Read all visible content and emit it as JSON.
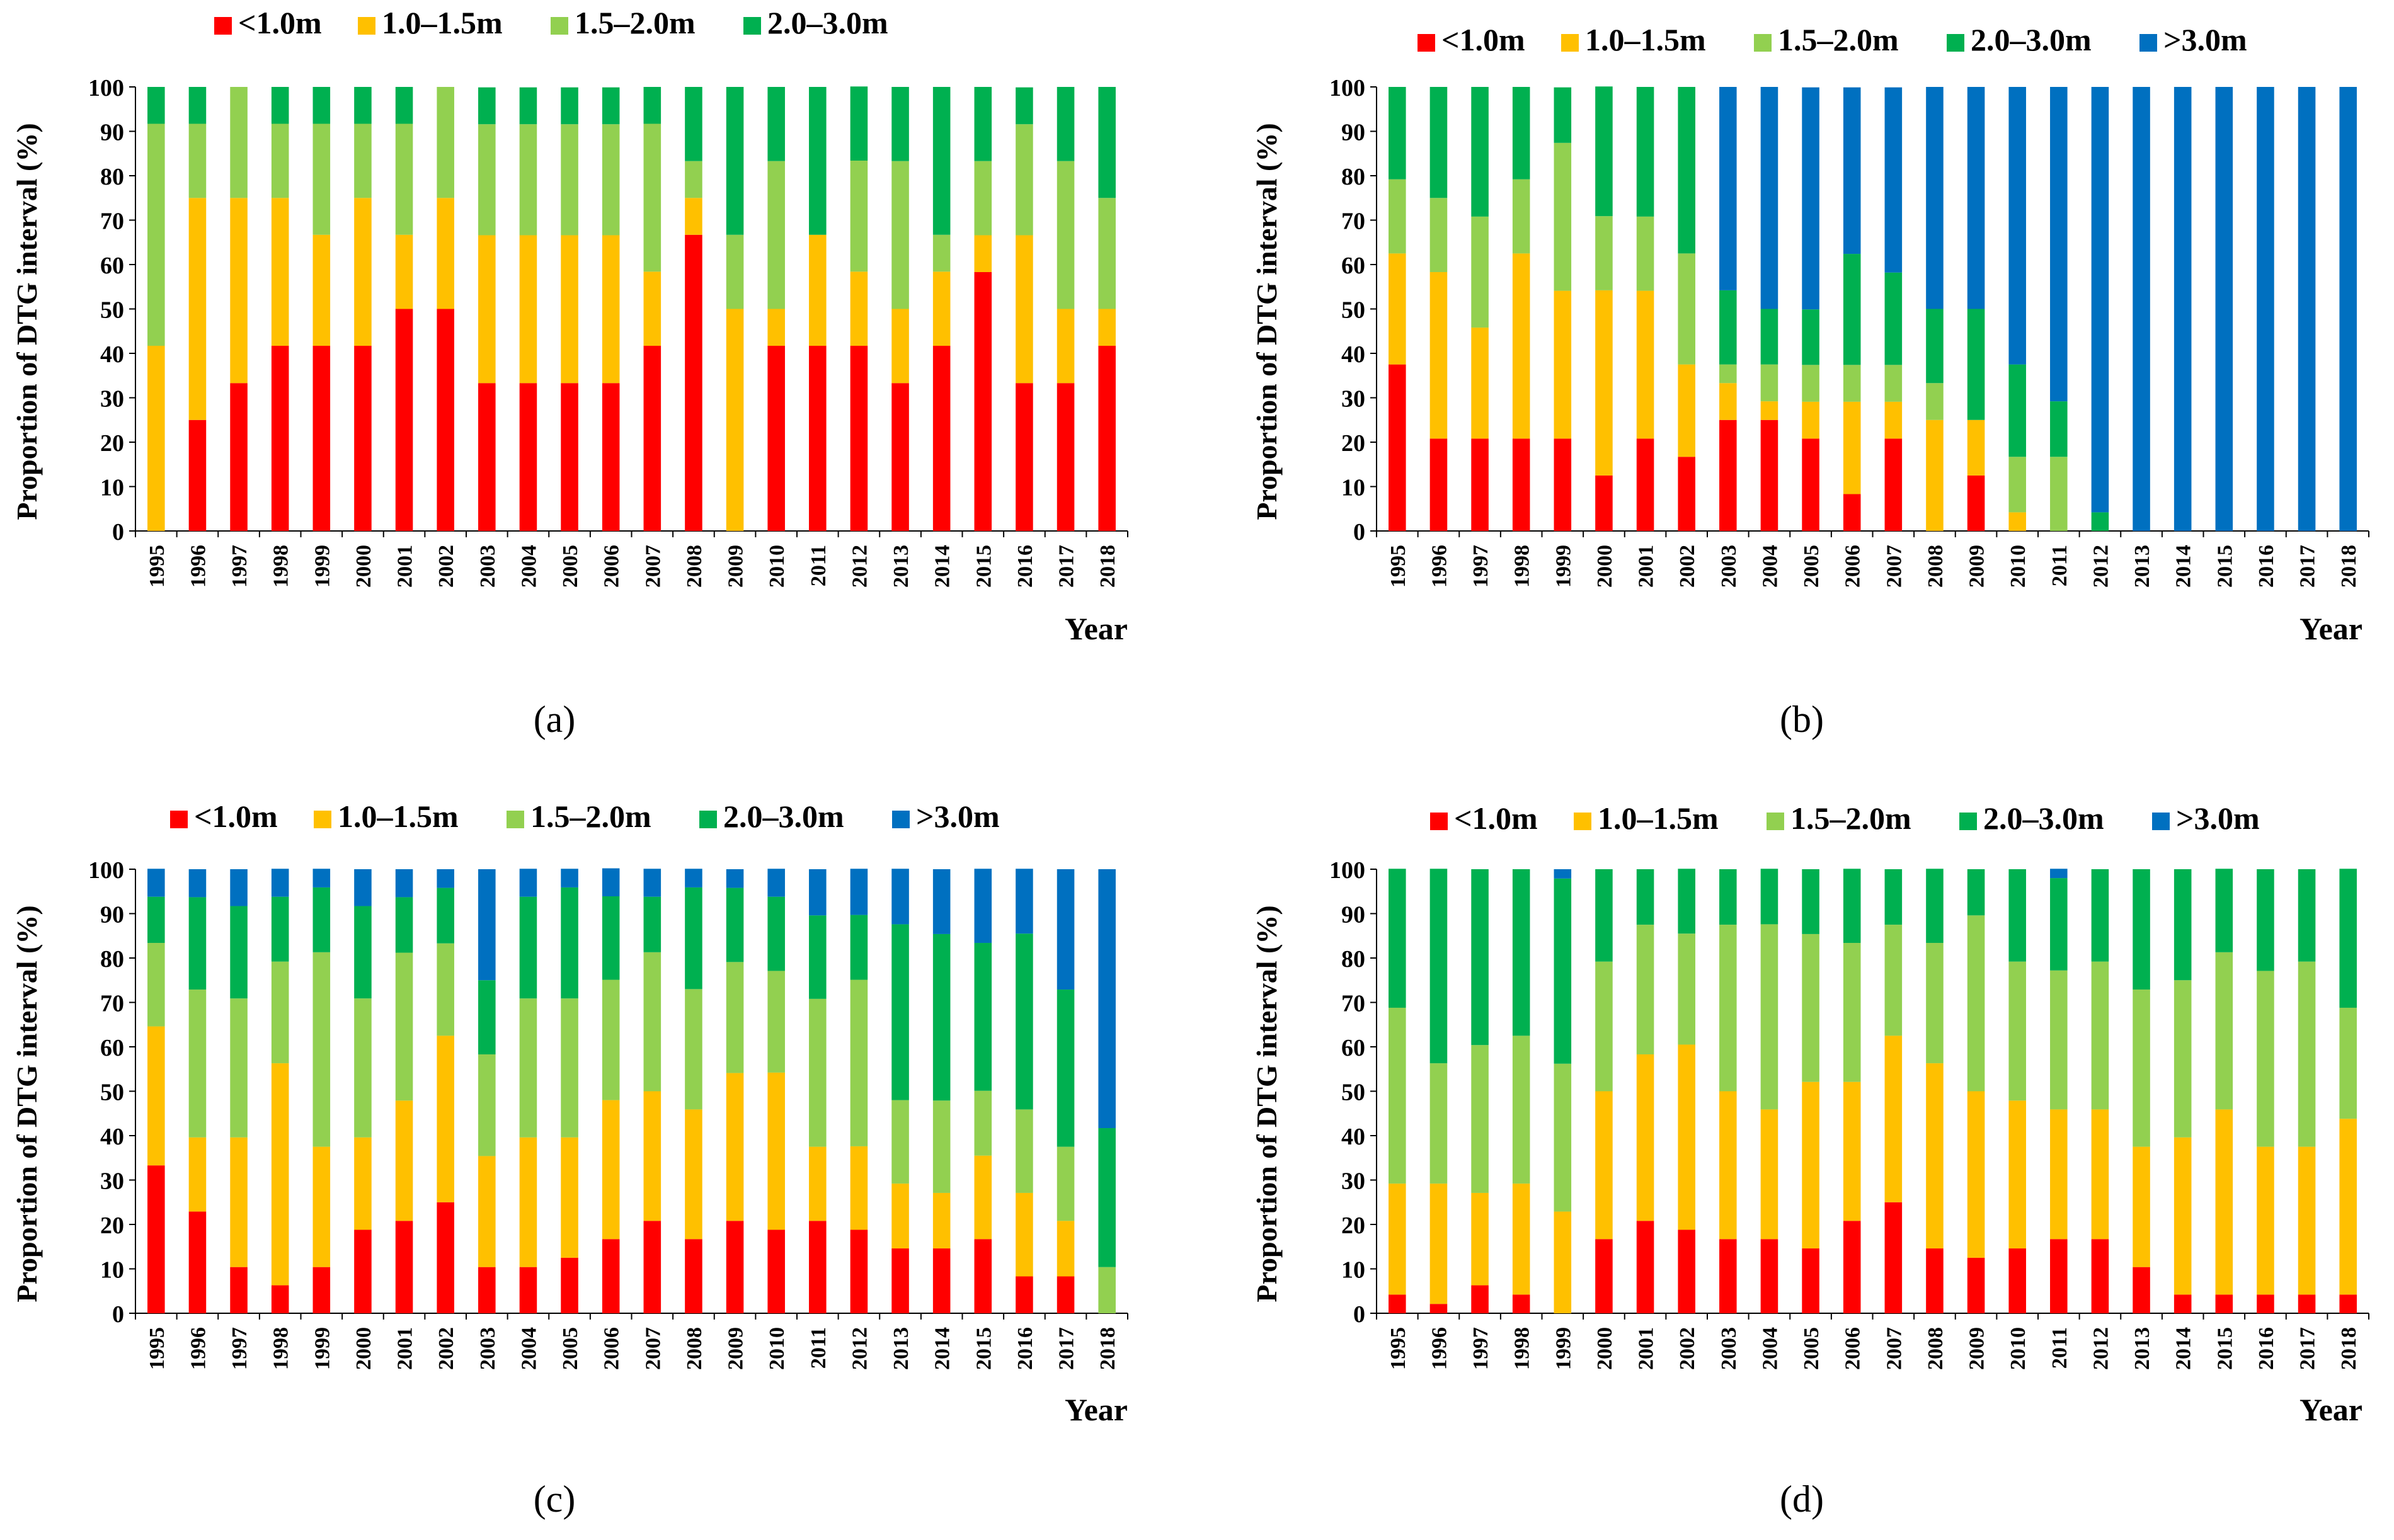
{
  "colors": {
    "<1.0m": "#ff0000",
    "1.0–1.5m": "#ffc000",
    "1.5–2.0m": "#92d050",
    "2.0–3.0m": "#00b050",
    ">3.0m": "#0070c0"
  },
  "chart_data": [
    {
      "type": "bar",
      "stacked": true,
      "panel": "(a)",
      "ylabel": "Proportion of DTG interval (%)",
      "xlabel": "Year",
      "ylim": [
        0,
        100
      ],
      "yticks": [
        "0",
        "10",
        "20",
        "30",
        "40",
        "50",
        "60",
        "70",
        "80",
        "90",
        "100"
      ],
      "categories": [
        "1995",
        "1996",
        "1997",
        "1998",
        "1999",
        "2000",
        "2001",
        "2002",
        "2003",
        "2004",
        "2005",
        "2006",
        "2007",
        "2008",
        "2009",
        "2010",
        "2011",
        "2012",
        "2013",
        "2014",
        "2015",
        "2016",
        "2017",
        "2018"
      ],
      "legend": [
        "<1.0m",
        "1.0–1.5m",
        "1.5–2.0m",
        "2.0–3.0m"
      ],
      "series": [
        {
          "name": "<1.0m",
          "values": [
            0,
            25,
            33.3,
            41.7,
            41.7,
            41.7,
            50,
            50,
            33.3,
            33.3,
            33.3,
            33.3,
            41.7,
            66.7,
            0,
            41.7,
            41.7,
            41.7,
            33.3,
            41.7,
            58.3,
            33.3,
            33.3,
            41.7
          ]
        },
        {
          "name": "1.0–1.5m",
          "values": [
            41.7,
            50,
            41.7,
            33.3,
            25,
            33.3,
            16.7,
            25,
            33.3,
            33.3,
            33.3,
            33.3,
            16.7,
            8.3,
            50,
            8.3,
            25,
            16.7,
            16.7,
            16.7,
            8.3,
            33.3,
            16.7,
            8.3
          ]
        },
        {
          "name": "1.5–2.0m",
          "values": [
            50,
            16.7,
            25,
            16.7,
            25,
            16.7,
            25,
            25,
            25,
            25,
            25,
            25,
            33.3,
            8.3,
            16.7,
            33.3,
            0,
            25,
            33.3,
            8.3,
            16.7,
            25,
            33.3,
            25
          ]
        },
        {
          "name": "2.0–3.0m",
          "values": [
            8.3,
            8.3,
            0,
            8.3,
            8.3,
            8.3,
            8.3,
            0,
            8.3,
            8.3,
            8.3,
            8.3,
            8.3,
            16.7,
            33.3,
            16.7,
            33.3,
            16.7,
            16.7,
            33.3,
            16.7,
            8.3,
            16.7,
            25
          ]
        }
      ]
    },
    {
      "type": "bar",
      "stacked": true,
      "panel": "(b)",
      "ylabel": "Proportion of DTG interval (%)",
      "xlabel": "Year",
      "ylim": [
        0,
        100
      ],
      "yticks": [
        "0",
        "10",
        "20",
        "30",
        "40",
        "50",
        "60",
        "70",
        "80",
        "90",
        "100"
      ],
      "categories": [
        "1995",
        "1996",
        "1997",
        "1998",
        "1999",
        "2000",
        "2001",
        "2002",
        "2003",
        "2004",
        "2005",
        "2006",
        "2007",
        "2008",
        "2009",
        "2010",
        "2011",
        "2012",
        "2013",
        "2014",
        "2015",
        "2016",
        "2017",
        "2018"
      ],
      "legend": [
        "<1.0m",
        "1.0–1.5m",
        "1.5–2.0m",
        "2.0–3.0m",
        ">3.0m"
      ],
      "series": [
        {
          "name": "<1.0m",
          "values": [
            37.5,
            20.8,
            20.8,
            20.8,
            20.8,
            12.5,
            20.8,
            16.7,
            25,
            25,
            20.8,
            8.3,
            20.8,
            0,
            12.5,
            0,
            0,
            0,
            0,
            0,
            0,
            0,
            0,
            0
          ]
        },
        {
          "name": "1.0–1.5m",
          "values": [
            25,
            37.5,
            25,
            41.7,
            33.3,
            41.7,
            33.3,
            20.8,
            8.3,
            4.2,
            8.3,
            20.8,
            8.3,
            25,
            12.5,
            4.2,
            0,
            0,
            0,
            0,
            0,
            0,
            0,
            0
          ]
        },
        {
          "name": "1.5–2.0m",
          "values": [
            16.7,
            16.7,
            25,
            16.7,
            33.3,
            16.7,
            16.7,
            25,
            4.2,
            8.3,
            8.3,
            8.3,
            8.3,
            8.3,
            0,
            12.5,
            16.7,
            0,
            0,
            0,
            0,
            0,
            0,
            0
          ]
        },
        {
          "name": "2.0–3.0m",
          "values": [
            20.8,
            25,
            29.2,
            20.8,
            12.5,
            29.2,
            29.2,
            37.5,
            16.7,
            12.5,
            12.5,
            25,
            20.8,
            16.7,
            25,
            20.8,
            12.5,
            4.2,
            0,
            0,
            0,
            0,
            0,
            0
          ]
        },
        {
          "name": ">3.0m",
          "values": [
            0,
            0,
            0,
            0,
            0,
            0,
            0,
            0,
            45.8,
            50,
            50,
            37.5,
            41.7,
            50,
            50,
            62.5,
            70.8,
            95.8,
            100,
            100,
            100,
            100,
            100,
            100
          ]
        }
      ]
    },
    {
      "type": "bar",
      "stacked": true,
      "panel": "(c)",
      "ylabel": "Proportion of DTG interval (%)",
      "xlabel": "Year",
      "ylim": [
        0,
        100
      ],
      "yticks": [
        "0",
        "10",
        "20",
        "30",
        "40",
        "50",
        "60",
        "70",
        "80",
        "90",
        "100"
      ],
      "categories": [
        "1995",
        "1996",
        "1997",
        "1998",
        "1999",
        "2000",
        "2001",
        "2002",
        "2003",
        "2004",
        "2005",
        "2006",
        "2007",
        "2008",
        "2009",
        "2010",
        "2011",
        "2012",
        "2013",
        "2014",
        "2015",
        "2016",
        "2017",
        "2018"
      ],
      "legend": [
        "<1.0m",
        "1.0–1.5m",
        "1.5–2.0m",
        "2.0–3.0m",
        ">3.0m"
      ],
      "series": [
        {
          "name": "<1.0m",
          "values": [
            33.3,
            22.9,
            10.4,
            6.3,
            10.4,
            18.8,
            20.8,
            25,
            10.4,
            10.4,
            12.5,
            16.7,
            20.8,
            16.7,
            20.8,
            18.8,
            20.8,
            18.8,
            14.6,
            14.6,
            16.7,
            8.3,
            8.3,
            0
          ]
        },
        {
          "name": "1.0–1.5m",
          "values": [
            31.3,
            16.7,
            29.2,
            50,
            27.1,
            20.8,
            27.1,
            37.5,
            25,
            29.2,
            27.1,
            31.3,
            29.2,
            29.2,
            33.3,
            35.4,
            16.7,
            18.8,
            14.6,
            12.5,
            18.8,
            18.8,
            12.5,
            0
          ]
        },
        {
          "name": "1.5–2.0m",
          "values": [
            18.8,
            33.3,
            31.3,
            22.9,
            43.8,
            31.3,
            33.3,
            20.8,
            22.9,
            31.3,
            31.3,
            27.1,
            31.3,
            27.1,
            25,
            22.9,
            33.3,
            37.5,
            18.8,
            20.8,
            14.6,
            18.8,
            16.7,
            10.4
          ]
        },
        {
          "name": "2.0–3.0m",
          "values": [
            10.4,
            20.8,
            20.8,
            14.6,
            14.6,
            20.8,
            12.5,
            12.5,
            16.7,
            22.9,
            25,
            18.8,
            12.5,
            22.9,
            16.7,
            16.7,
            18.8,
            14.6,
            39.6,
            37.5,
            33.3,
            39.6,
            35.4,
            31.3
          ]
        },
        {
          "name": ">3.0m",
          "values": [
            6.3,
            6.3,
            8.3,
            6.3,
            4.2,
            8.3,
            6.3,
            4.2,
            25,
            6.3,
            4.2,
            6.3,
            6.3,
            4.2,
            4.2,
            6.3,
            10.4,
            10.4,
            12.5,
            14.6,
            16.7,
            14.6,
            27.1,
            58.3
          ]
        }
      ]
    },
    {
      "type": "bar",
      "stacked": true,
      "panel": "(d)",
      "ylabel": "Proportion of DTG interval (%)",
      "xlabel": "Year",
      "ylim": [
        0,
        100
      ],
      "yticks": [
        "0",
        "10",
        "20",
        "30",
        "40",
        "50",
        "60",
        "70",
        "80",
        "90",
        "100"
      ],
      "categories": [
        "1995",
        "1996",
        "1997",
        "1998",
        "1999",
        "2000",
        "2001",
        "2002",
        "2003",
        "2004",
        "2005",
        "2006",
        "2007",
        "2008",
        "2009",
        "2010",
        "2011",
        "2012",
        "2013",
        "2014",
        "2015",
        "2016",
        "2017",
        "2018"
      ],
      "legend": [
        "<1.0m",
        "1.0–1.5m",
        "1.5–2.0m",
        "2.0–3.0m",
        ">3.0m"
      ],
      "series": [
        {
          "name": "<1.0m",
          "values": [
            4.2,
            2.1,
            6.3,
            4.2,
            0,
            16.7,
            20.8,
            18.8,
            16.7,
            16.7,
            14.6,
            20.8,
            25,
            14.6,
            12.5,
            14.6,
            16.7,
            16.7,
            10.4,
            4.2,
            4.2,
            4.2,
            4.2,
            4.2
          ]
        },
        {
          "name": "1.0–1.5m",
          "values": [
            25,
            27.1,
            20.8,
            25,
            22.9,
            33.3,
            37.5,
            41.7,
            33.3,
            29.2,
            37.5,
            31.3,
            37.5,
            41.7,
            37.5,
            33.3,
            29.2,
            29.2,
            27.1,
            35.4,
            41.7,
            33.3,
            33.3,
            39.6
          ]
        },
        {
          "name": "1.5–2.0m",
          "values": [
            39.6,
            27.1,
            33.3,
            33.3,
            33.3,
            29.2,
            29.2,
            25,
            37.5,
            41.7,
            33.3,
            31.3,
            25,
            27.1,
            39.6,
            31.3,
            31.3,
            33.3,
            35.4,
            35.4,
            35.4,
            39.6,
            41.7,
            25
          ]
        },
        {
          "name": "2.0–3.0m",
          "values": [
            31.3,
            43.8,
            39.6,
            37.5,
            41.7,
            20.8,
            12.5,
            14.6,
            12.5,
            12.5,
            14.6,
            16.7,
            12.5,
            16.7,
            10.4,
            20.8,
            20.8,
            20.8,
            27.1,
            25,
            18.8,
            22.9,
            20.8,
            31.3
          ]
        },
        {
          "name": ">3.0m",
          "values": [
            0,
            0,
            0,
            0,
            2.1,
            0,
            0,
            0,
            0,
            0,
            0,
            0,
            0,
            0,
            0,
            0,
            2.1,
            0,
            0,
            0,
            0,
            0,
            0,
            0
          ]
        }
      ]
    }
  ]
}
